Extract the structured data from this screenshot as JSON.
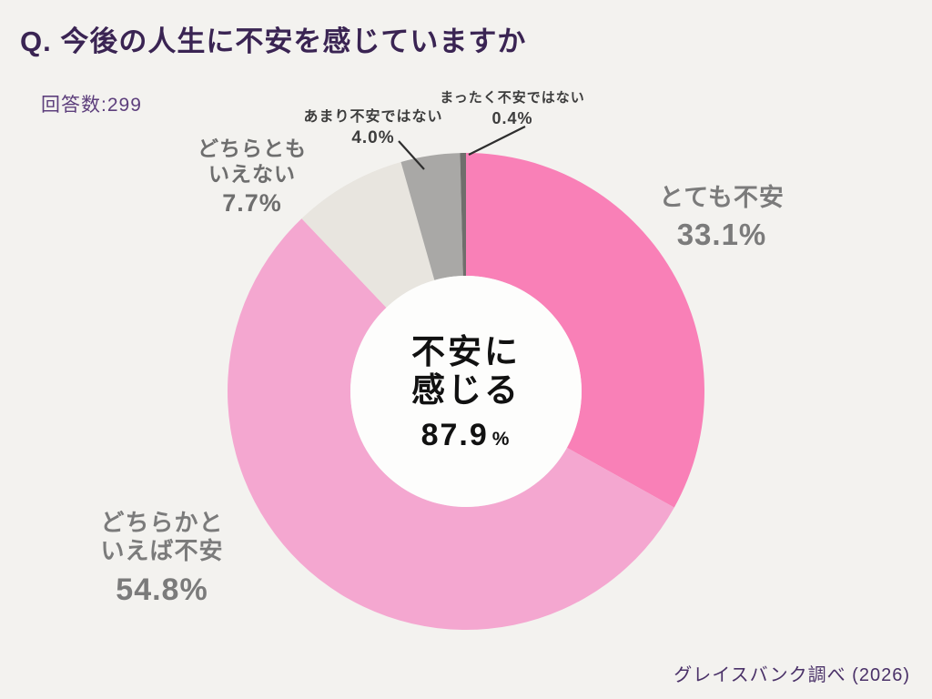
{
  "header": {
    "title": "Q. 今後の人生に不安を感じていますか",
    "respondents": "回答数:299"
  },
  "footer": {
    "source": "グレイスバンク調べ (2026)"
  },
  "colors": {
    "background": "#f3f2ef",
    "title_purple": "#3a2453",
    "respondents_purple": "#5d3f7c",
    "source_purple": "#4a3168",
    "label_gray": "#7b7b7b",
    "label_dark": "#3d3d3d",
    "center_text": "#111111",
    "donut_hole": "#fdfdfc"
  },
  "chart_data": {
    "type": "pie",
    "subtype": "donut",
    "title": "今後の人生に不安を感じていますか",
    "total_responses": 299,
    "unit": "%",
    "start_angle": "top",
    "direction": "clockwise",
    "legend_position": "around-chart",
    "grid": false,
    "categories": [
      "とても不安",
      "どちらかといえば不安",
      "どちらともいえない",
      "あまり不安ではない",
      "まったく不安ではない"
    ],
    "values": [
      33.1,
      54.8,
      7.7,
      4.0,
      0.4
    ],
    "slices": [
      {
        "label": "とても不安",
        "label_lines": [
          "とても不安"
        ],
        "value": 33.1,
        "display": "33.1%",
        "color": "#f980b7"
      },
      {
        "label": "どちらかといえば不安",
        "label_lines": [
          "どちらかと",
          "いえば不安"
        ],
        "value": 54.8,
        "display": "54.8%",
        "color": "#f4a7d0"
      },
      {
        "label": "どちらともいえない",
        "label_lines": [
          "どちらとも",
          "いえない"
        ],
        "value": 7.7,
        "display": "7.7%",
        "color": "#e8e5df"
      },
      {
        "label": "あまり不安ではない",
        "label_lines": [
          "あまり不安ではない"
        ],
        "value": 4.0,
        "display": "4.0%",
        "color": "#a9a8a6"
      },
      {
        "label": "まったく不安ではない",
        "label_lines": [
          "まったく不安ではない"
        ],
        "value": 0.4,
        "display": "0.4%",
        "color": "#6f6e6c"
      }
    ],
    "center": {
      "lines": [
        "不安に",
        "感じる"
      ],
      "value": "87.9",
      "unit": "%"
    }
  }
}
